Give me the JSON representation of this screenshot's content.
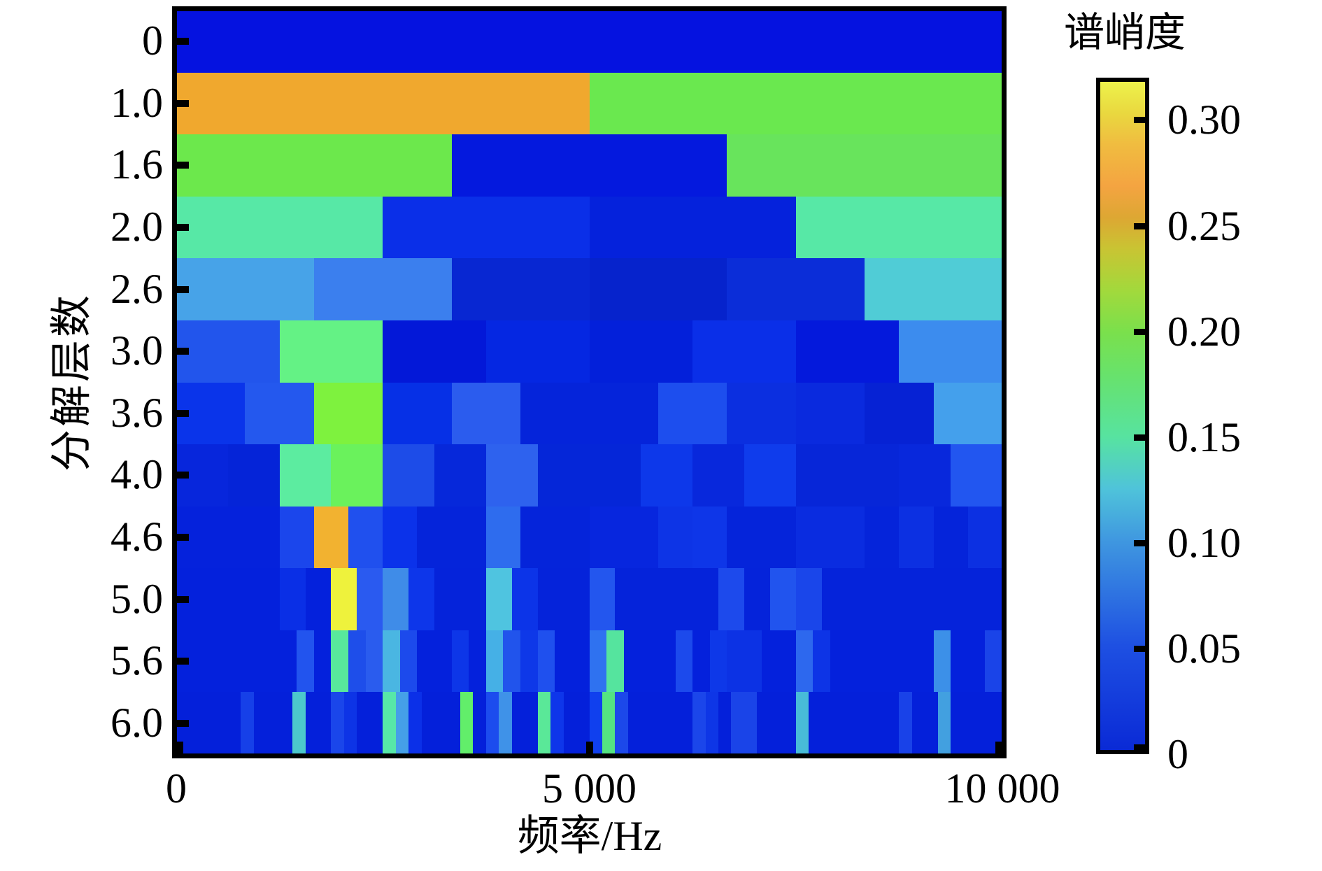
{
  "figure": {
    "background": "#ffffff",
    "frame_color": "#000000"
  },
  "y_axis": {
    "label": "分解层数",
    "tick_labels": [
      "0",
      "1.0",
      "1.6",
      "2.0",
      "2.6",
      "3.0",
      "3.6",
      "4.0",
      "4.6",
      "5.0",
      "5.6",
      "6.0"
    ]
  },
  "x_axis": {
    "label": "频率/Hz",
    "ticks": [
      {
        "label": "0",
        "frac": 0
      },
      {
        "label": "5 000",
        "frac": 0.5
      },
      {
        "label": "10 000",
        "frac": 1
      }
    ]
  },
  "colorbar": {
    "title": "谱峭度",
    "vmin": 0,
    "vmax": 0.32,
    "ticks": [
      {
        "label": "0.30",
        "value": 0.3
      },
      {
        "label": "0.25",
        "value": 0.25
      },
      {
        "label": "0.20",
        "value": 0.2
      },
      {
        "label": "0.15",
        "value": 0.15
      },
      {
        "label": "0.10",
        "value": 0.1
      },
      {
        "label": "0.05",
        "value": 0.05
      },
      {
        "label": "0",
        "value": 0
      }
    ],
    "gradient": [
      {
        "v": 0.0,
        "c": "#0a2ad6"
      },
      {
        "v": 0.05,
        "c": "#1e50e2"
      },
      {
        "v": 0.1,
        "c": "#3f97e0"
      },
      {
        "v": 0.125,
        "c": "#4fc3da"
      },
      {
        "v": 0.15,
        "c": "#57e3a0"
      },
      {
        "v": 0.18,
        "c": "#68e26b"
      },
      {
        "v": 0.2,
        "c": "#7ae04c"
      },
      {
        "v": 0.22,
        "c": "#a2d93c"
      },
      {
        "v": 0.24,
        "c": "#c9c433"
      },
      {
        "v": 0.255,
        "c": "#dda733"
      },
      {
        "v": 0.27,
        "c": "#f4a441"
      },
      {
        "v": 0.29,
        "c": "#f0bc40"
      },
      {
        "v": 0.305,
        "c": "#e9d83f"
      },
      {
        "v": 0.32,
        "c": "#edf24b"
      }
    ]
  },
  "chart_data": {
    "type": "heatmap",
    "xlabel": "频率/Hz",
    "ylabel": "分解层数",
    "colorbar_label": "谱峭度",
    "x_range_hz": [
      0,
      10000
    ],
    "value_range": [
      0,
      0.32
    ],
    "grid": false,
    "note": "Kurtogram: each row is a decomposition level split into equal-width frequency bands; v = spectral kurtosis value, c = rendered color.",
    "rows": [
      {
        "level": "0",
        "bands": [
          {
            "v": 0.02,
            "c": "#0512e0"
          }
        ]
      },
      {
        "level": "1.0",
        "bands": [
          {
            "v": 0.265,
            "c": "#f0a82e"
          },
          {
            "v": 0.19,
            "c": "#6ae84f"
          }
        ]
      },
      {
        "level": "1.6",
        "bands": [
          {
            "v": 0.19,
            "c": "#6ce84c"
          },
          {
            "v": 0.02,
            "c": "#0419de"
          },
          {
            "v": 0.19,
            "c": "#68e45c"
          }
        ]
      },
      {
        "level": "2.0",
        "bands": [
          {
            "v": 0.15,
            "c": "#57e8a6"
          },
          {
            "v": 0.035,
            "c": "#0a2fe8"
          },
          {
            "v": 0.02,
            "c": "#0522dc"
          },
          {
            "v": 0.15,
            "c": "#57e8a6"
          }
        ]
      },
      {
        "level": "2.6",
        "bands": [
          {
            "v": 0.1,
            "c": "#47a3e8"
          },
          {
            "v": 0.085,
            "c": "#3b7fee"
          },
          {
            "v": 0.018,
            "c": "#0827d2"
          },
          {
            "v": 0.012,
            "c": "#0623cc"
          },
          {
            "v": 0.02,
            "c": "#0b2dd8"
          },
          {
            "v": 0.125,
            "c": "#50ccd6"
          }
        ]
      },
      {
        "level": "3.0",
        "bands": [
          {
            "v": 0.06,
            "c": "#2255ec"
          },
          {
            "v": 0.18,
            "c": "#64f285"
          },
          {
            "v": 0.01,
            "c": "#0318d8"
          },
          {
            "v": 0.022,
            "c": "#0527e2"
          },
          {
            "v": 0.012,
            "c": "#0320da"
          },
          {
            "v": 0.03,
            "c": "#0a2fe8"
          },
          {
            "v": 0.015,
            "c": "#0419dc"
          },
          {
            "v": 0.085,
            "c": "#3c8cee"
          }
        ]
      },
      {
        "level": "3.6",
        "bands": [
          {
            "v": 0.03,
            "c": "#0a34ea"
          },
          {
            "v": 0.06,
            "c": "#2458ee"
          },
          {
            "v": 0.21,
            "c": "#7ef23e"
          },
          {
            "v": 0.028,
            "c": "#0630e6"
          },
          {
            "v": 0.065,
            "c": "#2b5cee"
          },
          {
            "v": 0.012,
            "c": "#0524da"
          },
          {
            "v": 0.012,
            "c": "#0524da"
          },
          {
            "v": 0.055,
            "c": "#1d4eee"
          },
          {
            "v": 0.022,
            "c": "#0b2fe0"
          },
          {
            "v": 0.018,
            "c": "#0a2ade"
          },
          {
            "v": 0.01,
            "c": "#0622d4"
          },
          {
            "v": 0.1,
            "c": "#44a0ec"
          }
        ]
      },
      {
        "level": "4.0",
        "bands": [
          {
            "v": 0.015,
            "c": "#0726dc"
          },
          {
            "v": 0.012,
            "c": "#0524d8"
          },
          {
            "v": 0.15,
            "c": "#5ceca0"
          },
          {
            "v": 0.185,
            "c": "#6af25c"
          },
          {
            "v": 0.05,
            "c": "#1d4ce8"
          },
          {
            "v": 0.014,
            "c": "#0628da"
          },
          {
            "v": 0.07,
            "c": "#2e62ee"
          },
          {
            "v": 0.012,
            "c": "#0526d8"
          },
          {
            "v": 0.012,
            "c": "#0526d8"
          },
          {
            "v": 0.032,
            "c": "#0d38ea"
          },
          {
            "v": 0.016,
            "c": "#0828dc"
          },
          {
            "v": 0.035,
            "c": "#0f3cec"
          },
          {
            "v": 0.013,
            "c": "#0726d8"
          },
          {
            "v": 0.013,
            "c": "#0726d8"
          },
          {
            "v": 0.016,
            "c": "#0828dc"
          },
          {
            "v": 0.058,
            "c": "#2256f0"
          }
        ]
      },
      {
        "level": "4.6",
        "bands": [
          {
            "v": 0.012,
            "c": "#0522dc"
          },
          {
            "v": 0.012,
            "c": "#0522dc"
          },
          {
            "v": 0.012,
            "c": "#0522dc"
          },
          {
            "v": 0.05,
            "c": "#1b46ec"
          },
          {
            "v": 0.27,
            "c": "#f2b230"
          },
          {
            "v": 0.055,
            "c": "#2050ee"
          },
          {
            "v": 0.032,
            "c": "#0b32ea"
          },
          {
            "v": 0.012,
            "c": "#0524da"
          },
          {
            "v": 0.012,
            "c": "#0524da"
          },
          {
            "v": 0.068,
            "c": "#2e6cee"
          },
          {
            "v": 0.012,
            "c": "#0524da"
          },
          {
            "v": 0.012,
            "c": "#0524da"
          },
          {
            "v": 0.015,
            "c": "#0726de"
          },
          {
            "v": 0.015,
            "c": "#0726de"
          },
          {
            "v": 0.03,
            "c": "#0d34e6"
          },
          {
            "v": 0.032,
            "c": "#0e36e8"
          },
          {
            "v": 0.012,
            "c": "#0524da"
          },
          {
            "v": 0.012,
            "c": "#0524da"
          },
          {
            "v": 0.02,
            "c": "#0a2ce0"
          },
          {
            "v": 0.02,
            "c": "#0a2ce0"
          },
          {
            "v": 0.012,
            "c": "#0524da"
          },
          {
            "v": 0.025,
            "c": "#0c30e2"
          },
          {
            "v": 0.012,
            "c": "#0524da"
          },
          {
            "v": 0.025,
            "c": "#0c30e2"
          }
        ]
      },
      {
        "level": "5.0",
        "bands": [
          {
            "v": 0.01,
            "c": "#0421dc"
          },
          {
            "v": 0.01,
            "c": "#0421dc"
          },
          {
            "v": 0.01,
            "c": "#0421dc"
          },
          {
            "v": 0.01,
            "c": "#0421dc"
          },
          {
            "v": 0.028,
            "c": "#0a2fe6"
          },
          {
            "v": 0.01,
            "c": "#0421dc"
          },
          {
            "v": 0.305,
            "c": "#eef23c"
          },
          {
            "v": 0.06,
            "c": "#2a5af0"
          },
          {
            "v": 0.09,
            "c": "#3f8ce8"
          },
          {
            "v": 0.032,
            "c": "#0d36ea"
          },
          {
            "v": 0.01,
            "c": "#0523da"
          },
          {
            "v": 0.01,
            "c": "#0523da"
          },
          {
            "v": 0.115,
            "c": "#4fc4e0"
          },
          {
            "v": 0.03,
            "c": "#0c34e8"
          },
          {
            "v": 0.01,
            "c": "#0523da"
          },
          {
            "v": 0.01,
            "c": "#0523da"
          },
          {
            "v": 0.058,
            "c": "#2356ee"
          },
          {
            "v": 0.01,
            "c": "#0523da"
          },
          {
            "v": 0.01,
            "c": "#0523da"
          },
          {
            "v": 0.01,
            "c": "#0523da"
          },
          {
            "v": 0.01,
            "c": "#0523da"
          },
          {
            "v": 0.05,
            "c": "#1d4aec"
          },
          {
            "v": 0.01,
            "c": "#0523da"
          },
          {
            "v": 0.055,
            "c": "#2154ee"
          },
          {
            "v": 0.045,
            "c": "#1a46ea"
          },
          {
            "v": 0.01,
            "c": "#0523da"
          },
          {
            "v": 0.01,
            "c": "#0523da"
          },
          {
            "v": 0.01,
            "c": "#0523da"
          },
          {
            "v": 0.01,
            "c": "#0523da"
          },
          {
            "v": 0.01,
            "c": "#0523da"
          },
          {
            "v": 0.01,
            "c": "#0523da"
          },
          {
            "v": 0.01,
            "c": "#0523da"
          }
        ]
      },
      {
        "level": "5.6",
        "bands": [
          {
            "v": 0.01,
            "c": "#0421dc"
          },
          {
            "v": 0.01,
            "c": "#0421dc"
          },
          {
            "v": 0.01,
            "c": "#0421dc"
          },
          {
            "v": 0.01,
            "c": "#0421dc"
          },
          {
            "v": 0.01,
            "c": "#0421dc"
          },
          {
            "v": 0.01,
            "c": "#0421dc"
          },
          {
            "v": 0.01,
            "c": "#0421dc"
          },
          {
            "v": 0.055,
            "c": "#2254ee"
          },
          {
            "v": 0.01,
            "c": "#0421dc"
          },
          {
            "v": 0.148,
            "c": "#58e89c"
          },
          {
            "v": 0.05,
            "c": "#1e4eea"
          },
          {
            "v": 0.06,
            "c": "#2a5cee"
          },
          {
            "v": 0.105,
            "c": "#4ab6e2"
          },
          {
            "v": 0.048,
            "c": "#1c4aec"
          },
          {
            "v": 0.01,
            "c": "#0421dc"
          },
          {
            "v": 0.01,
            "c": "#0421dc"
          },
          {
            "v": 0.03,
            "c": "#0d36e8"
          },
          {
            "v": 0.01,
            "c": "#0421dc"
          },
          {
            "v": 0.1,
            "c": "#45b0e6"
          },
          {
            "v": 0.052,
            "c": "#2154ec"
          },
          {
            "v": 0.03,
            "c": "#0e38e8"
          },
          {
            "v": 0.052,
            "c": "#1f50ee"
          },
          {
            "v": 0.01,
            "c": "#0421dc"
          },
          {
            "v": 0.01,
            "c": "#0421dc"
          },
          {
            "v": 0.068,
            "c": "#2f72f0"
          },
          {
            "v": 0.146,
            "c": "#55e49e"
          },
          {
            "v": 0.01,
            "c": "#0421dc"
          },
          {
            "v": 0.01,
            "c": "#0421dc"
          },
          {
            "v": 0.01,
            "c": "#0421dc"
          },
          {
            "v": 0.048,
            "c": "#1c4aec"
          },
          {
            "v": 0.01,
            "c": "#0421dc"
          },
          {
            "v": 0.03,
            "c": "#0e38e8"
          },
          {
            "v": 0.026,
            "c": "#0c32e4"
          },
          {
            "v": 0.026,
            "c": "#0c32e4"
          },
          {
            "v": 0.01,
            "c": "#0421dc"
          },
          {
            "v": 0.01,
            "c": "#0421dc"
          },
          {
            "v": 0.062,
            "c": "#2d68ee"
          },
          {
            "v": 0.028,
            "c": "#0d34e6"
          },
          {
            "v": 0.01,
            "c": "#0421dc"
          },
          {
            "v": 0.01,
            "c": "#0421dc"
          },
          {
            "v": 0.01,
            "c": "#0421dc"
          },
          {
            "v": 0.01,
            "c": "#0421dc"
          },
          {
            "v": 0.01,
            "c": "#0421dc"
          },
          {
            "v": 0.01,
            "c": "#0421dc"
          },
          {
            "v": 0.09,
            "c": "#3c90e8"
          },
          {
            "v": 0.01,
            "c": "#0421dc"
          },
          {
            "v": 0.01,
            "c": "#0421dc"
          },
          {
            "v": 0.045,
            "c": "#1a44e8"
          }
        ]
      },
      {
        "level": "6.0",
        "bands": [
          {
            "v": 0.01,
            "c": "#0420da"
          },
          {
            "v": 0.01,
            "c": "#0420da"
          },
          {
            "v": 0.01,
            "c": "#0420da"
          },
          {
            "v": 0.01,
            "c": "#0420da"
          },
          {
            "v": 0.01,
            "c": "#0420da"
          },
          {
            "v": 0.04,
            "c": "#1640e8"
          },
          {
            "v": 0.01,
            "c": "#0420da"
          },
          {
            "v": 0.01,
            "c": "#0420da"
          },
          {
            "v": 0.01,
            "c": "#0420da"
          },
          {
            "v": 0.12,
            "c": "#4cc8cc"
          },
          {
            "v": 0.01,
            "c": "#0420da"
          },
          {
            "v": 0.01,
            "c": "#0420da"
          },
          {
            "v": 0.045,
            "c": "#1a46ea"
          },
          {
            "v": 0.028,
            "c": "#0d34e6"
          },
          {
            "v": 0.01,
            "c": "#0420da"
          },
          {
            "v": 0.01,
            "c": "#0420da"
          },
          {
            "v": 0.15,
            "c": "#57e8a8"
          },
          {
            "v": 0.098,
            "c": "#45a0e8"
          },
          {
            "v": 0.03,
            "c": "#0b30e8"
          },
          {
            "v": 0.01,
            "c": "#0420da"
          },
          {
            "v": 0.01,
            "c": "#0420da"
          },
          {
            "v": 0.01,
            "c": "#0420da"
          },
          {
            "v": 0.18,
            "c": "#62ee6a"
          },
          {
            "v": 0.01,
            "c": "#0420da"
          },
          {
            "v": 0.05,
            "c": "#1c4cee"
          },
          {
            "v": 0.09,
            "c": "#3f92e8"
          },
          {
            "v": 0.01,
            "c": "#0420da"
          },
          {
            "v": 0.01,
            "c": "#0420da"
          },
          {
            "v": 0.147,
            "c": "#5ae898"
          },
          {
            "v": 0.03,
            "c": "#0e36ea"
          },
          {
            "v": 0.01,
            "c": "#0420da"
          },
          {
            "v": 0.01,
            "c": "#0420da"
          },
          {
            "v": 0.035,
            "c": "#1040ee"
          },
          {
            "v": 0.15,
            "c": "#54e482"
          },
          {
            "v": 0.047,
            "c": "#1c48ea"
          },
          {
            "v": 0.01,
            "c": "#0420da"
          },
          {
            "v": 0.01,
            "c": "#0420da"
          },
          {
            "v": 0.01,
            "c": "#0420da"
          },
          {
            "v": 0.01,
            "c": "#0420da"
          },
          {
            "v": 0.01,
            "c": "#0420da"
          },
          {
            "v": 0.045,
            "c": "#1b46ea"
          },
          {
            "v": 0.03,
            "c": "#0e36e6"
          },
          {
            "v": 0.01,
            "c": "#0420da"
          },
          {
            "v": 0.044,
            "c": "#1a44e8"
          },
          {
            "v": 0.044,
            "c": "#1a44e8"
          },
          {
            "v": 0.01,
            "c": "#0420da"
          },
          {
            "v": 0.01,
            "c": "#0420da"
          },
          {
            "v": 0.01,
            "c": "#0420da"
          },
          {
            "v": 0.11,
            "c": "#48bcd8"
          },
          {
            "v": 0.01,
            "c": "#0420da"
          },
          {
            "v": 0.01,
            "c": "#0420da"
          },
          {
            "v": 0.01,
            "c": "#0420da"
          },
          {
            "v": 0.01,
            "c": "#0420da"
          },
          {
            "v": 0.01,
            "c": "#0420da"
          },
          {
            "v": 0.01,
            "c": "#0420da"
          },
          {
            "v": 0.01,
            "c": "#0420da"
          },
          {
            "v": 0.042,
            "c": "#1942e8"
          },
          {
            "v": 0.01,
            "c": "#0420da"
          },
          {
            "v": 0.01,
            "c": "#0420da"
          },
          {
            "v": 0.095,
            "c": "#42a0e0"
          },
          {
            "v": 0.01,
            "c": "#0420da"
          },
          {
            "v": 0.01,
            "c": "#0420da"
          },
          {
            "v": 0.01,
            "c": "#0420da"
          },
          {
            "v": 0.01,
            "c": "#0420da"
          }
        ]
      }
    ]
  }
}
